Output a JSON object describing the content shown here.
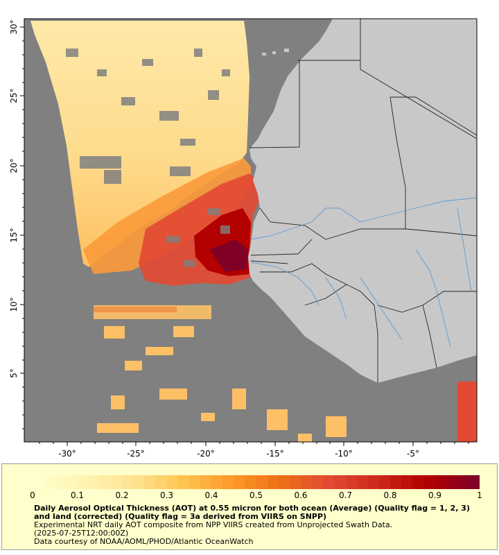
{
  "map": {
    "lat_ticks": [
      "30°",
      "25°",
      "20°",
      "15°",
      "10°",
      "5°"
    ],
    "lon_ticks": [
      "-30°",
      "-25°",
      "-20°",
      "-15°",
      "-10°",
      "-5°"
    ],
    "colors": {
      "ocean": "#808080",
      "land": "#c8c8c8",
      "border": "#222222",
      "river": "#5b9bd5"
    }
  },
  "legend": {
    "ticks": [
      "0",
      "0.1",
      "0.2",
      "0.3",
      "0.4",
      "0.5",
      "0.6",
      "0.7",
      "0.8",
      "0.9",
      "1"
    ],
    "colors": [
      "#ffffcc",
      "#fff3b0",
      "#fee391",
      "#fec44f",
      "#fe9929",
      "#ec7014",
      "#e34a33",
      "#cc2a1b",
      "#b30000",
      "#800026"
    ],
    "title": "Daily Aerosol Optical Thickness (AOT) at 0.55 micron for both ocean (Average) (Quality flag = 1, 2, 3) and land (corrected) (Quality flag = 3a derived from VIIRS on SNPP)",
    "line1": "Experimental NRT daily AOT composite from NPP VIIRS created from Unprojected Swath Data.",
    "line2": "(2025-07-25T12:00:00Z)",
    "line3": "Data courtesy of NOAA/AOML/PHOD/Atlantic OceanWatch"
  }
}
